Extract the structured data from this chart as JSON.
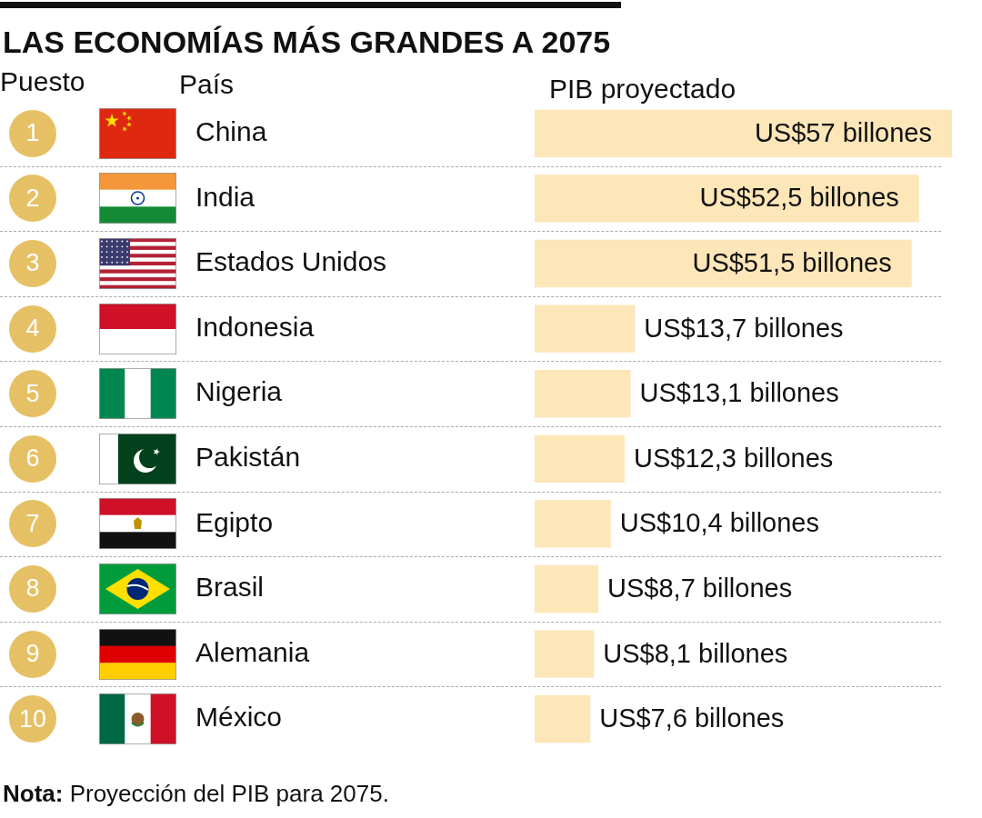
{
  "chart_data": {
    "type": "bar",
    "orientation": "horizontal",
    "title": "LAS ECONOMÍAS MÁS GRANDES A 2075",
    "xlabel": "PIB proyectado",
    "ylabel": "País",
    "categories": [
      "China",
      "India",
      "Estados Unidos",
      "Indonesia",
      "Nigeria",
      "Pakistán",
      "Egipto",
      "Brasil",
      "Alemania",
      "México"
    ],
    "values": [
      57,
      52.5,
      51.5,
      13.7,
      13.1,
      12.3,
      10.4,
      8.7,
      8.1,
      7.6
    ],
    "color": "#fde6b8",
    "xlim": [
      0,
      57
    ],
    "tick_labels": "y",
    "value_labels": [
      "US$57 billones",
      "US$52,5 billones",
      "US$51,5 billones",
      "US$13,7 billones",
      "US$13,1 billones",
      "US$12,3 billones",
      "US$10,4 billones",
      "US$8,7 billones",
      "US$8,1 billones",
      "US$7,6 billones"
    ],
    "annotations": [
      "Puesto",
      "1",
      "2",
      "3",
      "4",
      "5",
      "6",
      "7",
      "8",
      "9",
      "10",
      "Nota: Proyección del PIB para 2075."
    ]
  }
}
